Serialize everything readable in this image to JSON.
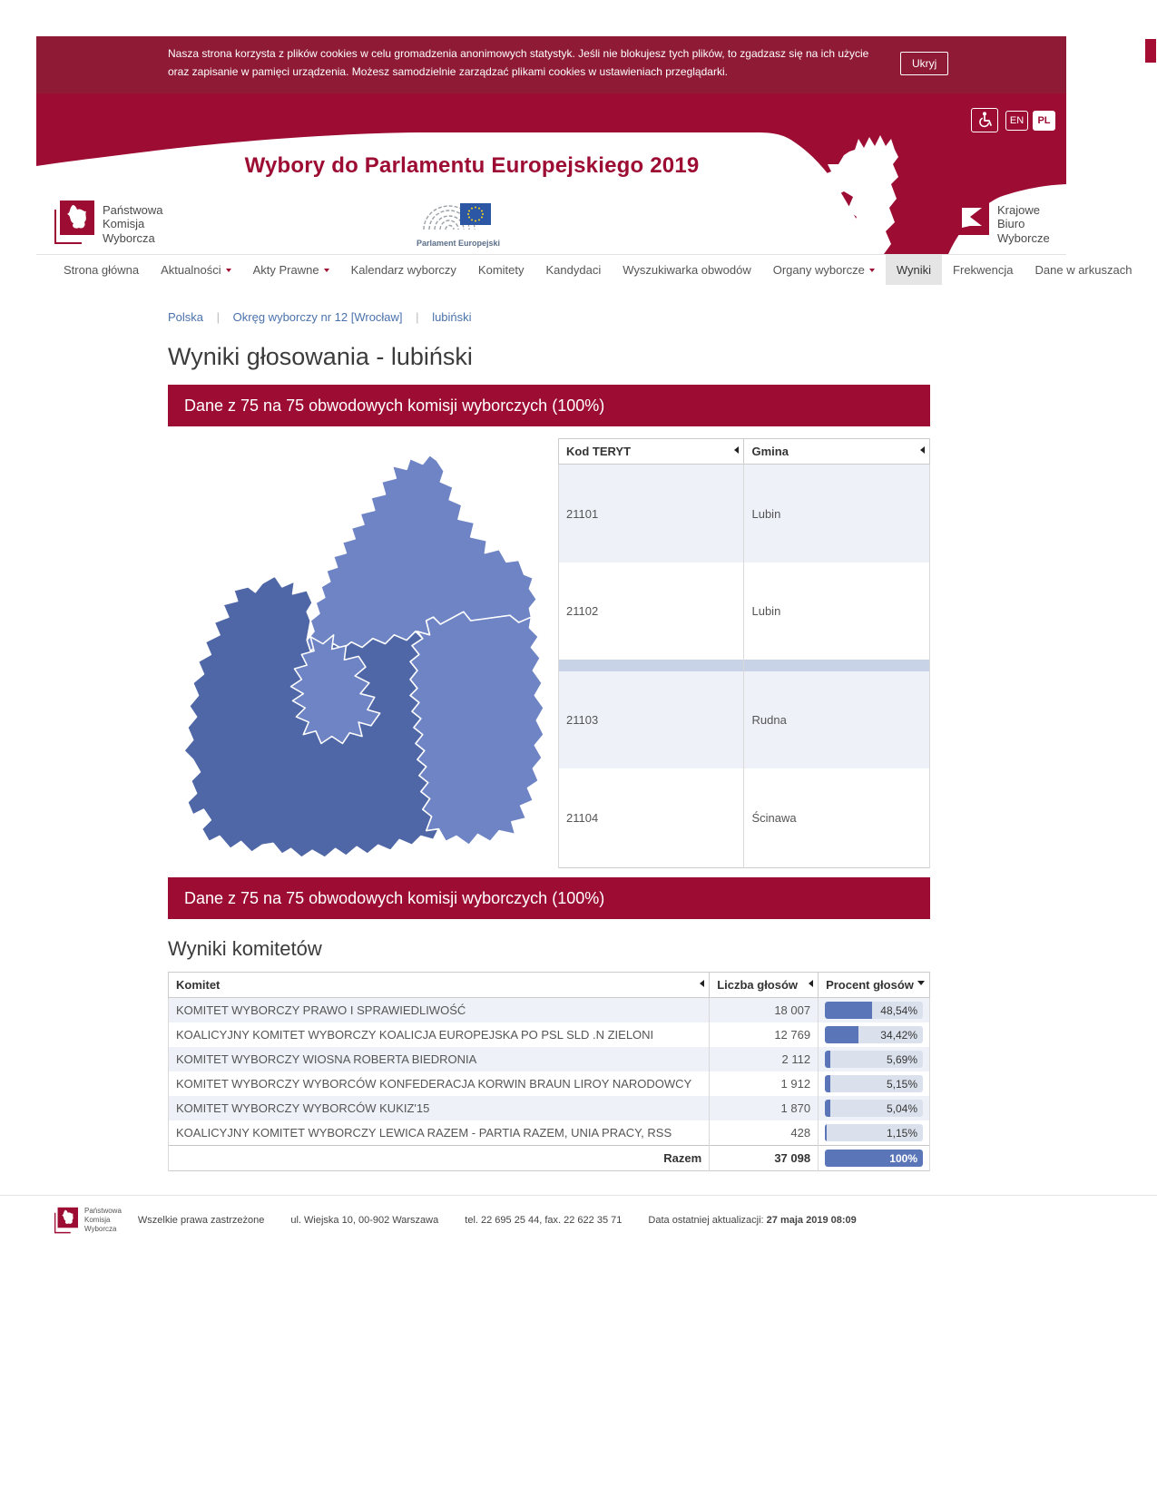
{
  "colors": {
    "accent_red": "#9d0c33",
    "cookie_red": "#8e1a36",
    "bar_blue": "#5b76b8",
    "bar_track": "#dbe1ec",
    "map_light_blue": "#6e84c5",
    "map_dark_blue": "#4f67a6",
    "row_alt": "#eef1f7",
    "row_highlight": "#c9d3e8"
  },
  "cookie_banner": {
    "text": "Nasza strona korzysta z plików cookies w celu gromadzenia anonimowych statystyk. Jeśli nie blokujesz tych plików, to zgadzasz się na ich użycie oraz zapisanie w pamięci urządzenia. Możesz samodzielnie zarządzać plikami cookies w ustawieniach przeglądarki.",
    "button": "Ukryj"
  },
  "header": {
    "title": "Wybory do Parlamentu Europejskiego 2019",
    "lang_en": "EN",
    "lang_pl": "PL",
    "pkw_logo": {
      "line1": "Państwowa",
      "line2": "Komisja",
      "line3": "Wyborcza"
    },
    "ep_logo_label": "Parlament Europejski",
    "kbw_logo": {
      "line1": "Krajowe",
      "line2": "Biuro",
      "line3": "Wyborcze"
    }
  },
  "nav": {
    "items": [
      {
        "label": "Strona główna",
        "dropdown": false,
        "active": false
      },
      {
        "label": "Aktualności",
        "dropdown": true,
        "active": false
      },
      {
        "label": "Akty Prawne",
        "dropdown": true,
        "active": false
      },
      {
        "label": "Kalendarz wyborczy",
        "dropdown": false,
        "active": false
      },
      {
        "label": "Komitety",
        "dropdown": false,
        "active": false
      },
      {
        "label": "Kandydaci",
        "dropdown": false,
        "active": false
      },
      {
        "label": "Wyszukiwarka obwodów",
        "dropdown": false,
        "active": false
      },
      {
        "label": "Organy wyborcze",
        "dropdown": true,
        "active": false
      },
      {
        "label": "Wyniki",
        "dropdown": false,
        "active": true
      },
      {
        "label": "Frekwencja",
        "dropdown": false,
        "active": false
      },
      {
        "label": "Dane w arkuszach",
        "dropdown": false,
        "active": false
      }
    ]
  },
  "breadcrumb": {
    "sep": "|",
    "items": [
      "Polska",
      "Okręg wyborczy nr 12 [Wrocław]",
      "lubiński"
    ]
  },
  "page_title": "Wyniki głosowania - lubiński",
  "progress_banner": "Dane z 75 na 75 obwodowych komisji wyborczych (100%)",
  "map": {
    "regions": [
      {
        "name": "Rudna",
        "shade": "light"
      },
      {
        "name": "Ścinawa",
        "shade": "light"
      },
      {
        "name": "Lubin (gmina wiejska)",
        "shade": "dark"
      },
      {
        "name": "Lubin (miasto)",
        "shade": "light"
      }
    ]
  },
  "teryt_table": {
    "col1": "Kod TERYT",
    "col2": "Gmina",
    "rows": [
      {
        "kod": "21101",
        "gmina": "Lubin"
      },
      {
        "kod": "21102",
        "gmina": "Lubin"
      },
      {
        "kod": "21103",
        "gmina": "Rudna"
      },
      {
        "kod": "21104",
        "gmina": "Ścinawa"
      }
    ]
  },
  "results": {
    "heading": "Wyniki komitetów",
    "col1": "Komitet",
    "col2": "Liczba głosów",
    "col3": "Procent głosów",
    "rows": [
      {
        "komitet": "KOMITET WYBORCZY PRAWO I SPRAWIEDLIWOŚĆ",
        "votes": "18 007",
        "percent": "48,54%",
        "pct": 48.54
      },
      {
        "komitet": "KOALICYJNY KOMITET WYBORCZY KOALICJA EUROPEJSKA PO PSL SLD .N ZIELONI",
        "votes": "12 769",
        "percent": "34,42%",
        "pct": 34.42
      },
      {
        "komitet": "KOMITET WYBORCZY WIOSNA ROBERTA BIEDRONIA",
        "votes": "2 112",
        "percent": "5,69%",
        "pct": 5.69
      },
      {
        "komitet": "KOMITET WYBORCZY WYBORCÓW KONFEDERACJA KORWIN BRAUN LIROY NARODOWCY",
        "votes": "1 912",
        "percent": "5,15%",
        "pct": 5.15
      },
      {
        "komitet": "KOMITET WYBORCZY WYBORCÓW KUKIZ'15",
        "votes": "1 870",
        "percent": "5,04%",
        "pct": 5.04
      },
      {
        "komitet": "KOALICYJNY KOMITET WYBORCZY LEWICA RAZEM - PARTIA RAZEM, UNIA PRACY, RSS",
        "votes": "428",
        "percent": "1,15%",
        "pct": 1.15
      }
    ],
    "total": {
      "label": "Razem",
      "votes": "37 098",
      "percent": "100%",
      "pct": 100
    }
  },
  "footer": {
    "pkw_logo": {
      "line1": "Państwowa",
      "line2": "Komisja",
      "line3": "Wyborcza"
    },
    "rights": "Wszelkie prawa zastrzeżone",
    "address": "ul. Wiejska 10, 00-902 Warszawa",
    "phone": "tel. 22 695 25 44, fax. 22 622 35 71",
    "updated_label": "Data ostatniej aktualizacji:",
    "updated_value": "27 maja 2019 08:09"
  }
}
